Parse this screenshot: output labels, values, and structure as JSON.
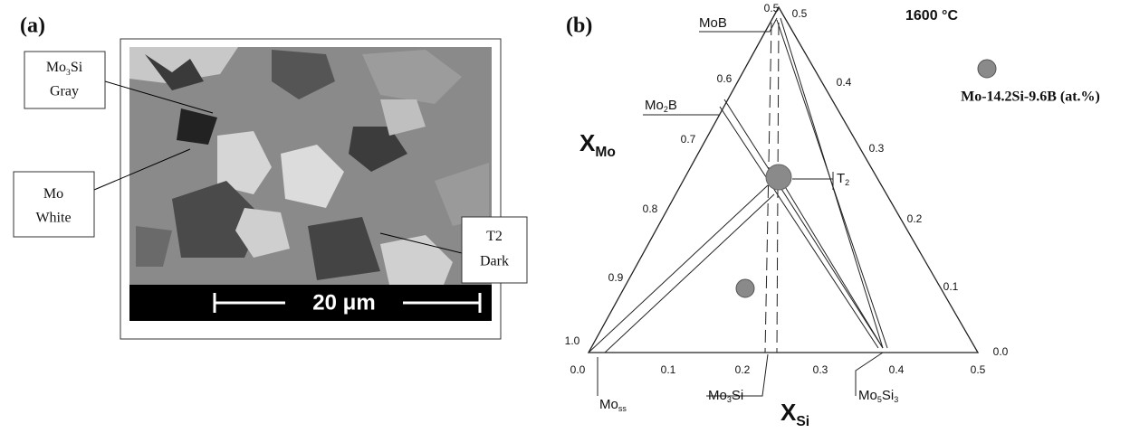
{
  "panel_a": {
    "label": "(a)",
    "callouts": [
      {
        "phase": [
          "Mo",
          "3",
          "Si"
        ],
        "contrast": "Gray"
      },
      {
        "phase": [
          "Mo"
        ],
        "contrast": "White"
      },
      {
        "phase": [
          "T2"
        ],
        "contrast": "Dark"
      }
    ],
    "scale_bar": "20 μm"
  },
  "panel_b": {
    "label": "(b)",
    "temperature": "1600 °C",
    "legend": "Mo-14.2Si-9.6B (at.%)",
    "x_mo": [
      "X",
      "Mo"
    ],
    "x_si": [
      "X",
      "Si"
    ],
    "left_ticks": [
      "0.5",
      "0.6",
      "0.7",
      "0.8",
      "0.9",
      "1.0"
    ],
    "bottom_ticks": [
      "0.0",
      "0.1",
      "0.2",
      "0.3",
      "0.4",
      "0.5"
    ],
    "right_ticks": [
      "0.5",
      "0.4",
      "0.3",
      "0.2",
      "0.1",
      "0.0"
    ],
    "phases": [
      [
        "MoB"
      ],
      [
        "Mo",
        "2",
        "B"
      ],
      [
        "T",
        "2"
      ],
      [
        "Mo",
        "ss"
      ],
      [
        "Mo",
        "3",
        "Si"
      ],
      [
        "Mo",
        "5",
        "Si",
        "3"
      ]
    ]
  }
}
